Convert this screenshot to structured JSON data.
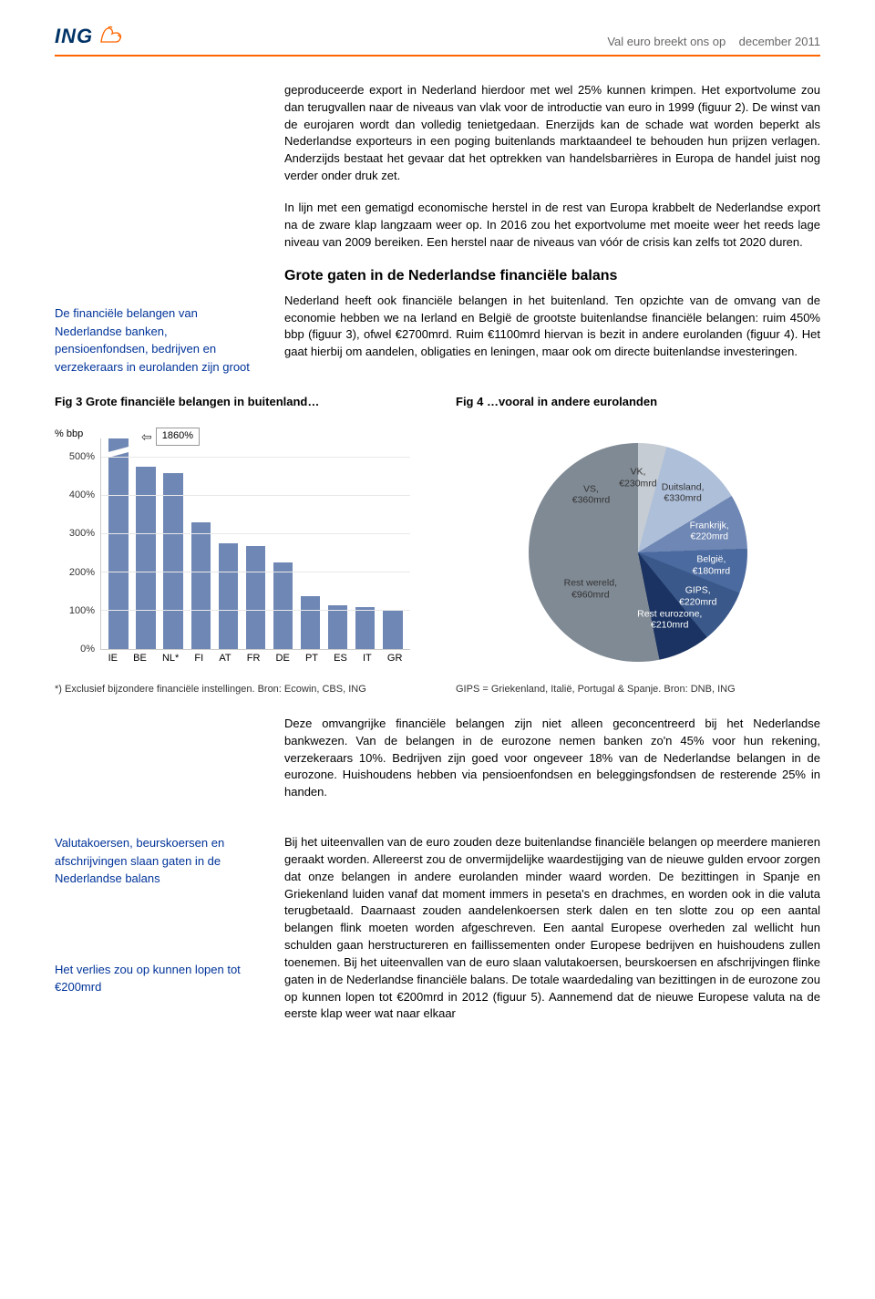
{
  "header": {
    "logo_text": "ING",
    "doc_title": "Val euro breekt ons op",
    "doc_date": "december 2011"
  },
  "callouts": {
    "c1": "De financiële belangen van Nederlandse banken, pensioenfondsen, bedrijven en verzekeraars in eurolanden zijn groot",
    "c2": "Valutakoersen, beurskoersen en afschrijvingen slaan gaten in de Nederlandse balans",
    "c3": "Het verlies zou op kunnen lopen tot €200mrd"
  },
  "body": {
    "p1": "geproduceerde export in Nederland hierdoor met wel 25% kunnen krimpen. Het exportvolume zou dan terugvallen naar de niveaus van vlak voor de introductie van euro in 1999 (figuur 2). De winst van de eurojaren wordt dan volledig tenietgedaan. Enerzijds kan de schade wat worden beperkt als Nederlandse exporteurs in een poging buitenlands marktaandeel te behouden hun prijzen verlagen. Anderzijds bestaat het gevaar dat het optrekken van handelsbarrières in Europa de handel juist nog verder onder druk zet.",
    "p2": "In lijn met een gematigd economische herstel in de rest van Europa krabbelt de Nederlandse export na de zware klap langzaam weer op. In 2016 zou het exportvolume met moeite weer het reeds lage niveau van 2009 bereiken. Een herstel naar de niveaus van vóór de crisis kan zelfs tot 2020 duren.",
    "h1": "Grote gaten in de Nederlandse financiële balans",
    "p3": "Nederland heeft ook financiële belangen in het buitenland. Ten opzichte van de omvang van de economie hebben we na Ierland en België de grootste buitenlandse financiële belangen: ruim 450% bbp (figuur 3), ofwel €2700mrd. Ruim €1100mrd hiervan is bezit in andere eurolanden (figuur 4). Het gaat hierbij om aandelen, obligaties en leningen, maar ook om directe buitenlandse investeringen.",
    "p4": "Deze omvangrijke financiële belangen zijn niet alleen geconcentreerd bij het Nederlandse bankwezen. Van de belangen in de eurozone nemen banken zo'n 45% voor hun rekening, verzekeraars 10%. Bedrijven zijn goed voor ongeveer 18% van de Nederlandse belangen in de eurozone. Huishoudens hebben via pensioenfondsen en beleggingsfondsen de resterende 25% in handen.",
    "p5": "Bij het uiteenvallen van de euro zouden deze buitenlandse financiële belangen op meerdere manieren geraakt worden. Allereerst zou de onvermijdelijke waardestijging van de nieuwe gulden ervoor zorgen dat onze belangen in andere eurolanden minder waard worden. De bezittingen in Spanje en Griekenland luiden vanaf dat moment immers in peseta's en drachmes, en worden ook in die valuta terugbetaald. Daarnaast zouden aandelenkoersen sterk dalen en ten slotte zou op een aantal belangen flink moeten worden afgeschreven. Een aantal Europese overheden zal wellicht hun schulden gaan herstructureren en faillissementen onder Europese bedrijven en huishoudens zullen toenemen. Bij het uiteenvallen van de euro slaan valutakoersen, beurskoersen en afschrijvingen flinke gaten in de Nederlandse financiële balans. De totale waardedaling van bezittingen in de eurozone zou op kunnen lopen tot €200mrd in 2012 (figuur 5). Aannemend dat de nieuwe Europese valuta na de eerste klap weer wat naar elkaar"
  },
  "fig3": {
    "title": "Fig 3   Grote financiële belangen in buitenland…",
    "axis_label": "% bbp",
    "callout_value": "1860%",
    "bar_color": "#6f87b4",
    "ymax": 550,
    "yticks": [
      0,
      100,
      200,
      300,
      400,
      500
    ],
    "ytick_labels": [
      "0%",
      "100%",
      "200%",
      "300%",
      "400%",
      "500%"
    ],
    "categories": [
      "IE",
      "BE",
      "NL*",
      "FI",
      "AT",
      "FR",
      "DE",
      "PT",
      "ES",
      "IT",
      "GR"
    ],
    "values": [
      550,
      475,
      460,
      330,
      275,
      268,
      225,
      138,
      115,
      110,
      100
    ],
    "footnote": "*) Exclusief bijzondere financiële instellingen. Bron: Ecowin, CBS, ING"
  },
  "fig4": {
    "title": "Fig 4   …vooral in andere eurolanden",
    "slices": [
      {
        "label": "Rest wereld,",
        "value": "€960mrd",
        "color": "#808a94",
        "degrees": 127.1
      },
      {
        "label": "VS,",
        "value": "€360mrd",
        "color": "#9aa4ae",
        "degrees": 47.7
      },
      {
        "label": "VK,",
        "value": "€230mrd",
        "color": "#c5ccd3",
        "degrees": 30.5
      },
      {
        "label": "Duitsland,",
        "value": "€330mrd",
        "color": "#aebfd9",
        "degrees": 43.7
      },
      {
        "label": "Frankrijk,",
        "value": "€220mrd",
        "color": "#6f87b4",
        "degrees": 29.1
      },
      {
        "label": "België,",
        "value": "€180mrd",
        "color": "#4b6a9f",
        "degrees": 23.8
      },
      {
        "label": "GIPS,",
        "value": "€220mrd",
        "color": "#3a5889",
        "degrees": 29.1
      },
      {
        "label": "Rest eurozone,",
        "value": "€210mrd",
        "color": "#1a3362",
        "degrees": 27.8
      }
    ],
    "footnote": "GIPS = Griekenland, Italië, Portugal & Spanje. Bron: DNB, ING"
  }
}
